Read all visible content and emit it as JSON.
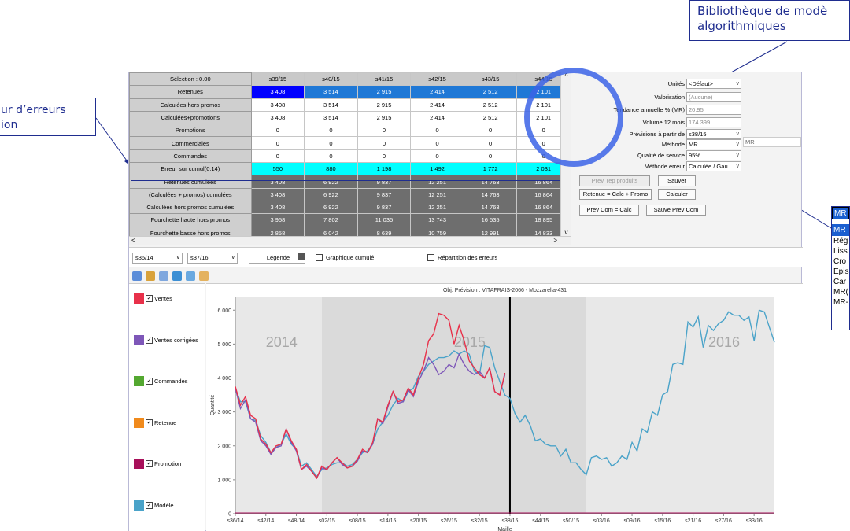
{
  "callouts": {
    "top_line1": "Bibliothèque de modè",
    "top_line2": "algorithmiques",
    "left_line1": "ur d’erreurs",
    "left_line2": "ion",
    "list_header": "MR",
    "list_selected": "MR",
    "list_items": [
      "Rég",
      "Liss",
      "Cro",
      "Epis",
      "Car",
      "MR(",
      "MR-"
    ]
  },
  "grid": {
    "selection_label": "Sélection : 0.00",
    "weeks": [
      "s39/15",
      "s40/15",
      "s41/15",
      "s42/15",
      "s43/15",
      "s44/15"
    ],
    "rows": [
      {
        "label": "Retenues",
        "values": [
          "3 408",
          "3 514",
          "2 915",
          "2 414",
          "2 512",
          "2 101"
        ]
      },
      {
        "label": "Calculées hors promos",
        "values": [
          "3 408",
          "3 514",
          "2 915",
          "2 414",
          "2 512",
          "2 101"
        ]
      },
      {
        "label": "Calculées+promotions",
        "values": [
          "3 408",
          "3 514",
          "2 915",
          "2 414",
          "2 512",
          "2 101"
        ]
      },
      {
        "label": "Promotions",
        "values": [
          "0",
          "0",
          "0",
          "0",
          "0",
          "0"
        ]
      },
      {
        "label": "Commerciales",
        "values": [
          "0",
          "0",
          "0",
          "0",
          "0",
          "0"
        ]
      },
      {
        "label": "Commandes",
        "values": [
          "0",
          "0",
          "0",
          "0",
          "0",
          "0"
        ]
      },
      {
        "label": "Erreur sur cumul(0.14)",
        "values": [
          "550",
          "880",
          "1 198",
          "1 492",
          "1 772",
          "2 031"
        ]
      },
      {
        "label": "Retenues cumulées",
        "values": [
          "3 408",
          "6 922",
          "9 837",
          "12 251",
          "14 763",
          "16 864"
        ]
      },
      {
        "label": "(Calculées + promos) cumulées",
        "values": [
          "3 408",
          "6 922",
          "9 837",
          "12 251",
          "14 763",
          "16 864"
        ]
      },
      {
        "label": "Calculées hors promos cumulées",
        "values": [
          "3 408",
          "6 922",
          "9 837",
          "12 251",
          "14 763",
          "16 864"
        ]
      },
      {
        "label": "Fourchette haute hors promos",
        "values": [
          "3 958",
          "7 802",
          "11 035",
          "13 743",
          "16 535",
          "18 895"
        ]
      },
      {
        "label": "Fourchette basse hors promos",
        "values": [
          "2 858",
          "6 042",
          "8 639",
          "10 759",
          "12 991",
          "14 833"
        ]
      }
    ]
  },
  "panel": {
    "unites_label": "Unités",
    "unites_value": "<Défaut>",
    "valorisation_label": "Valorisation",
    "valorisation_value": "(Aucune)",
    "tendance_label": "Tendance annuelle % (MR)",
    "tendance_value": "20.95",
    "volume_label": "Volume 12 mois",
    "volume_value": "174 399",
    "prevision_label": "Prévisions à partir de",
    "prevision_value": "s38/15",
    "methode_label": "Méthode",
    "methode_value": "MR",
    "methode_extra": "MR",
    "qualite_label": "Qualité de service",
    "qualite_value": "95%",
    "methode_erreur_label": "Méthode erreur",
    "methode_erreur_value": "Calculée / Gau",
    "btn_prev_rep": "Prev. rep produits",
    "btn_sauver": "Sauver",
    "btn_retenue": "Retenue = Calc + Promo",
    "btn_calculer": "Calculer",
    "btn_prevcom": "Prev Com = Calc",
    "btn_sauve_prev": "Sauve Prev Com"
  },
  "toolbar": {
    "from_week": "s36/14",
    "to_week": "s37/16",
    "legende": "Légende",
    "graphique_cumule": "Graphique cumulé",
    "repartition": "Répartition des erreurs"
  },
  "legend": [
    {
      "label": "Ventes",
      "color": "#e8314a"
    },
    {
      "label": "Ventes corrigées",
      "color": "#7e57b8"
    },
    {
      "label": "Commandes",
      "color": "#54a831"
    },
    {
      "label": "Retenue",
      "color": "#f08a1c"
    },
    {
      "label": "Promotion",
      "color": "#a8105a"
    },
    {
      "label": "Modèle",
      "color": "#4aa3c9"
    }
  ],
  "chart_data": {
    "type": "line",
    "title": "Obj. Prévision : VITAFRAIS-2066 - Mozzarella-431",
    "xlabel": "Maille",
    "ylabel": "Quantité",
    "ylim": [
      0,
      6400
    ],
    "yticks": [
      "0",
      "1 000",
      "2 000",
      "3 000",
      "4 000",
      "5 000",
      "6 000"
    ],
    "xticks": [
      "s36/14",
      "s42/14",
      "s48/14",
      "s02/15",
      "s08/15",
      "s14/15",
      "s20/15",
      "s26/15",
      "s32/15",
      "s38/15",
      "s44/15",
      "s50/15",
      "s03/16",
      "s09/16",
      "s15/16",
      "s21/16",
      "s27/16",
      "s33/16"
    ],
    "year_labels": [
      "2014",
      "2015",
      "2016"
    ],
    "forecast_start_week_index": 54,
    "series": [
      {
        "name": "Ventes",
        "color": "#e8314a",
        "values": [
          3750,
          3200,
          3450,
          2900,
          2800,
          2200,
          2050,
          1800,
          2000,
          2050,
          2500,
          2150,
          1900,
          1300,
          1450,
          1250,
          1050,
          1400,
          1300,
          1500,
          1650,
          1500,
          1350,
          1400,
          1600,
          1900,
          1800,
          2100,
          2800,
          2700,
          3200,
          3600,
          3300,
          3350,
          3700,
          3500,
          4000,
          4400,
          5100,
          5300,
          5900,
          5850,
          5700,
          5000,
          5550,
          5100,
          4500,
          4300,
          4100,
          4000,
          4300,
          3600,
          3500,
          4150
        ]
      },
      {
        "name": "Ventes corrigées",
        "color": "#7e57b8",
        "values": [
          3700,
          3100,
          3350,
          2800,
          2700,
          2150,
          2000,
          1750,
          1950,
          2000,
          2500,
          2100,
          1850,
          1300,
          1400,
          1250,
          1050,
          1350,
          1300,
          1500,
          1650,
          1450,
          1350,
          1400,
          1550,
          1850,
          1800,
          2050,
          2800,
          2650,
          3150,
          3600,
          3250,
          3300,
          3650,
          3450,
          3900,
          4200,
          4600,
          4400,
          4100,
          4200,
          4400,
          4300,
          4700,
          4400,
          4200,
          4100,
          4200,
          4000,
          4300,
          3600,
          3500,
          4100
        ]
      },
      {
        "name": "Modèle",
        "color": "#4aa3c9",
        "values": [
          3700,
          3300,
          3300,
          2800,
          2750,
          2300,
          2100,
          1800,
          1950,
          2050,
          2350,
          2050,
          1900,
          1400,
          1500,
          1300,
          1100,
          1300,
          1350,
          1450,
          1500,
          1500,
          1400,
          1450,
          1600,
          1800,
          1850,
          2050,
          2500,
          2700,
          2900,
          3200,
          3400,
          3300,
          3600,
          3700,
          4050,
          4200,
          4400,
          4500,
          4600,
          4600,
          4650,
          4800,
          4700,
          4800,
          4700,
          4200,
          4100,
          4950,
          4900,
          4300,
          3900,
          3500,
          3400,
          2950,
          2700,
          2900,
          2600,
          2150,
          2200,
          2050,
          2000,
          2000,
          1700,
          1900,
          1500,
          1500,
          1300,
          1150,
          1650,
          1700,
          1600,
          1650,
          1400,
          1500,
          1700,
          1600,
          2100,
          1850,
          2500,
          2400,
          3000,
          2900,
          3500,
          3600,
          4400,
          4450,
          4400,
          5650,
          5500,
          5800,
          4900,
          5550,
          5400,
          5600,
          5700,
          5950,
          5850,
          5850,
          5700,
          5800,
          5100,
          6000,
          5950,
          5500,
          5050
        ]
      }
    ]
  }
}
